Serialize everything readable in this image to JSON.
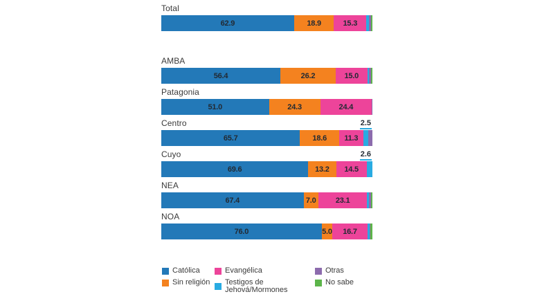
{
  "chart_data": {
    "type": "bar",
    "orientation": "horizontal",
    "stacked": true,
    "title": "",
    "xlabel": "",
    "ylabel": "",
    "xlim": [
      0,
      100
    ],
    "grid": false,
    "legend_position": "bottom",
    "categories": [
      "Total",
      "AMBA",
      "Patagonia",
      "Centro",
      "Cuyo",
      "NEA",
      "NOA"
    ],
    "gap_before": [
      "AMBA"
    ],
    "label_min": 5,
    "series": [
      {
        "name": "Católica",
        "color": "#2379b8",
        "values": [
          62.9,
          56.4,
          51.0,
          65.7,
          69.6,
          67.4,
          76.0
        ]
      },
      {
        "name": "Sin religión",
        "color": "#f4821f",
        "values": [
          18.9,
          26.2,
          24.3,
          18.6,
          13.2,
          7.0,
          5.0
        ]
      },
      {
        "name": "Evangélica",
        "color": "#ed449a",
        "values": [
          15.3,
          15.0,
          24.4,
          11.3,
          14.5,
          23.1,
          16.7
        ]
      },
      {
        "name": "Testigos de Jehová/Mormones",
        "color": "#29abe2",
        "values": [
          1.2,
          0.8,
          0.0,
          2.5,
          2.6,
          0.8,
          1.0
        ]
      },
      {
        "name": "Otras",
        "color": "#8c6bad",
        "values": [
          1.2,
          1.0,
          0.3,
          1.9,
          0.0,
          1.2,
          0.3
        ]
      },
      {
        "name": "No sabe",
        "color": "#5cb54a",
        "values": [
          0.5,
          0.6,
          0.0,
          0.0,
          0.0,
          0.5,
          1.0
        ]
      }
    ],
    "segment_labels_shown": [
      "62.9",
      "18.9",
      "15.3",
      "56.4",
      "26.2",
      "15.0",
      "51.0",
      "24.3",
      "24.4",
      "65.7",
      "18.6",
      "11.3",
      "69.6",
      "13.2",
      "14.5",
      "67.4",
      "7.0",
      "23.1",
      "76.0",
      "5.0",
      "16.7"
    ],
    "callout_labels": [
      {
        "category": "Centro",
        "series": "Testigos de Jehová/Mormones",
        "value": "2.5"
      },
      {
        "category": "Cuyo",
        "series": "Testigos de Jehová/Mormones",
        "value": "2.6"
      }
    ],
    "legend_columns": [
      [
        0,
        1
      ],
      [
        2,
        3
      ],
      [
        4,
        5
      ]
    ]
  },
  "colors": {
    "background": "#ffffff",
    "value_text": "#222a33",
    "label_text": "#3a3a3a",
    "callout_underline": "#29abe2"
  }
}
